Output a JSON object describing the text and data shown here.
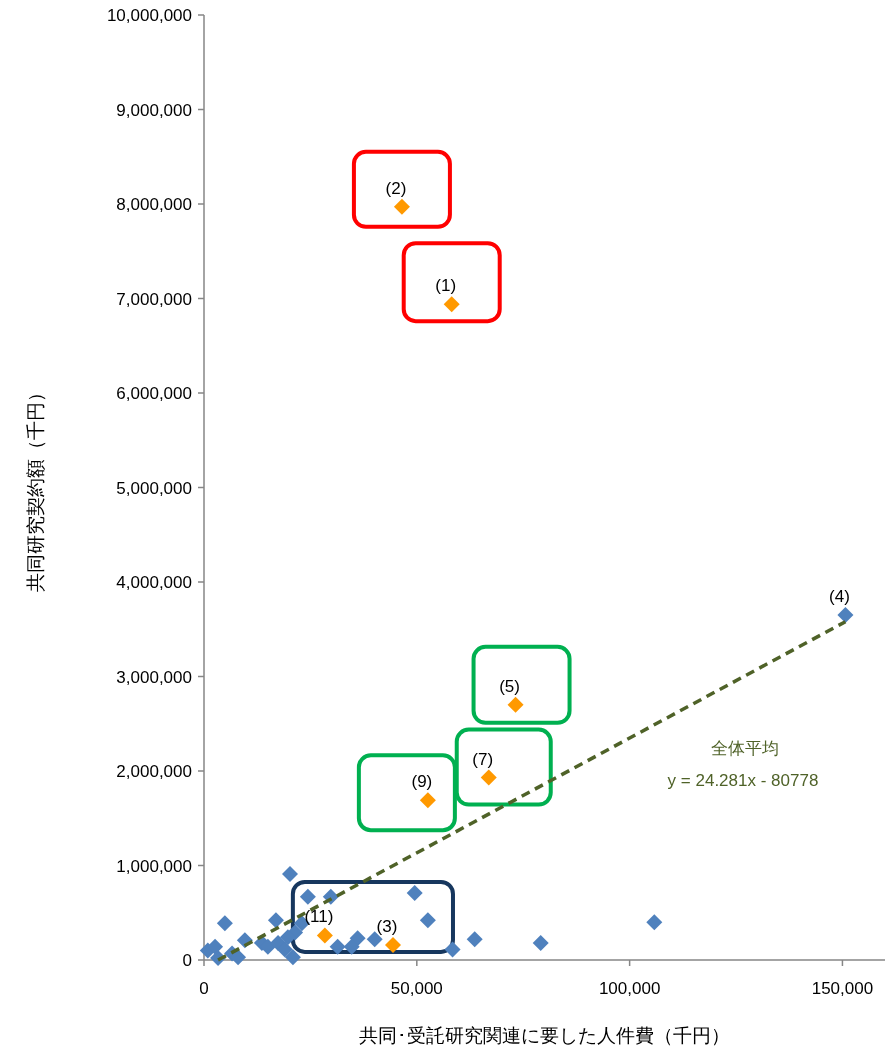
{
  "chart_data": {
    "type": "scatter",
    "xlabel": "共同･受託研究関連に要した人件費（千円）",
    "ylabel": "共同研究契約額（千円）",
    "xlim": [
      0,
      160000
    ],
    "ylim": [
      0,
      10000000
    ],
    "xticks": [
      0,
      {
        "value": 50000,
        "label": "50,000"
      },
      {
        "value": 100000,
        "label": "100,000"
      },
      {
        "value": 150000,
        "label": "150,000"
      }
    ],
    "yticks": [
      0,
      {
        "value": 1000000,
        "label": "1,000,000"
      },
      {
        "value": 2000000,
        "label": "2,000,000"
      },
      {
        "value": 3000000,
        "label": "3,000,000"
      },
      {
        "value": 4000000,
        "label": "4,000,000"
      },
      {
        "value": 5000000,
        "label": "5,000,000"
      },
      {
        "value": 6000000,
        "label": "6,000,000"
      },
      {
        "value": 7000000,
        "label": "7,000,000"
      },
      {
        "value": 8000000,
        "label": "8,000,000"
      },
      {
        "value": 9000000,
        "label": "9,000,000"
      },
      {
        "value": 10000000,
        "label": "10,000,000"
      }
    ],
    "marker": "diamond",
    "grid": false,
    "series": [
      {
        "type": "scatter",
        "color": "#4f81bd",
        "x": [
          150700,
          20200,
          29800,
          24400,
          49500,
          4900,
          16900,
          52600,
          63600,
          40100,
          36100,
          31400,
          34700,
          58400,
          23000,
          21400,
          900,
          2600,
          3300,
          6600,
          8000,
          9600,
          13600,
          15000,
          17400,
          19000,
          20900,
          19700,
          79100,
          105800
        ],
        "values": [
          3650000,
          910000,
          670000,
          670000,
          710000,
          390000,
          420000,
          420000,
          220000,
          220000,
          230000,
          140000,
          140000,
          110000,
          390000,
          290000,
          100000,
          140000,
          20000,
          70000,
          30000,
          210000,
          180000,
          140000,
          180000,
          110000,
          30000,
          240000,
          180000,
          400000
        ]
      },
      {
        "type": "scatter",
        "color": "#ff9900",
        "x": [
          46500,
          58200,
          73200,
          66900,
          52600,
          44400,
          28400
        ],
        "values": [
          7970000,
          6940000,
          2700000,
          1930000,
          1690000,
          160000,
          260000
        ]
      },
      {
        "type": "line",
        "name": "全体平均",
        "color": "#4f6228",
        "line_style": "dashed",
        "marker": "none",
        "x": [
          3300,
          150700
        ],
        "values": [
          0,
          3580000
        ]
      }
    ],
    "annotations": [
      {
        "text": "(2)",
        "x": 46500,
        "y": 7970000
      },
      {
        "text": "(1)",
        "x": 58200,
        "y": 6940000
      },
      {
        "text": "(4)",
        "x": 150700,
        "y": 3650000
      },
      {
        "text": "(5)",
        "x": 73200,
        "y": 2700000
      },
      {
        "text": "(7)",
        "x": 66900,
        "y": 1930000
      },
      {
        "text": "(9)",
        "x": 52600,
        "y": 1690000
      },
      {
        "text": "(3)",
        "x": 44400,
        "y": 160000
      },
      {
        "text": "(11)",
        "x": 28400,
        "y": 260000
      },
      "y = 24.281x - 80778"
    ]
  }
}
